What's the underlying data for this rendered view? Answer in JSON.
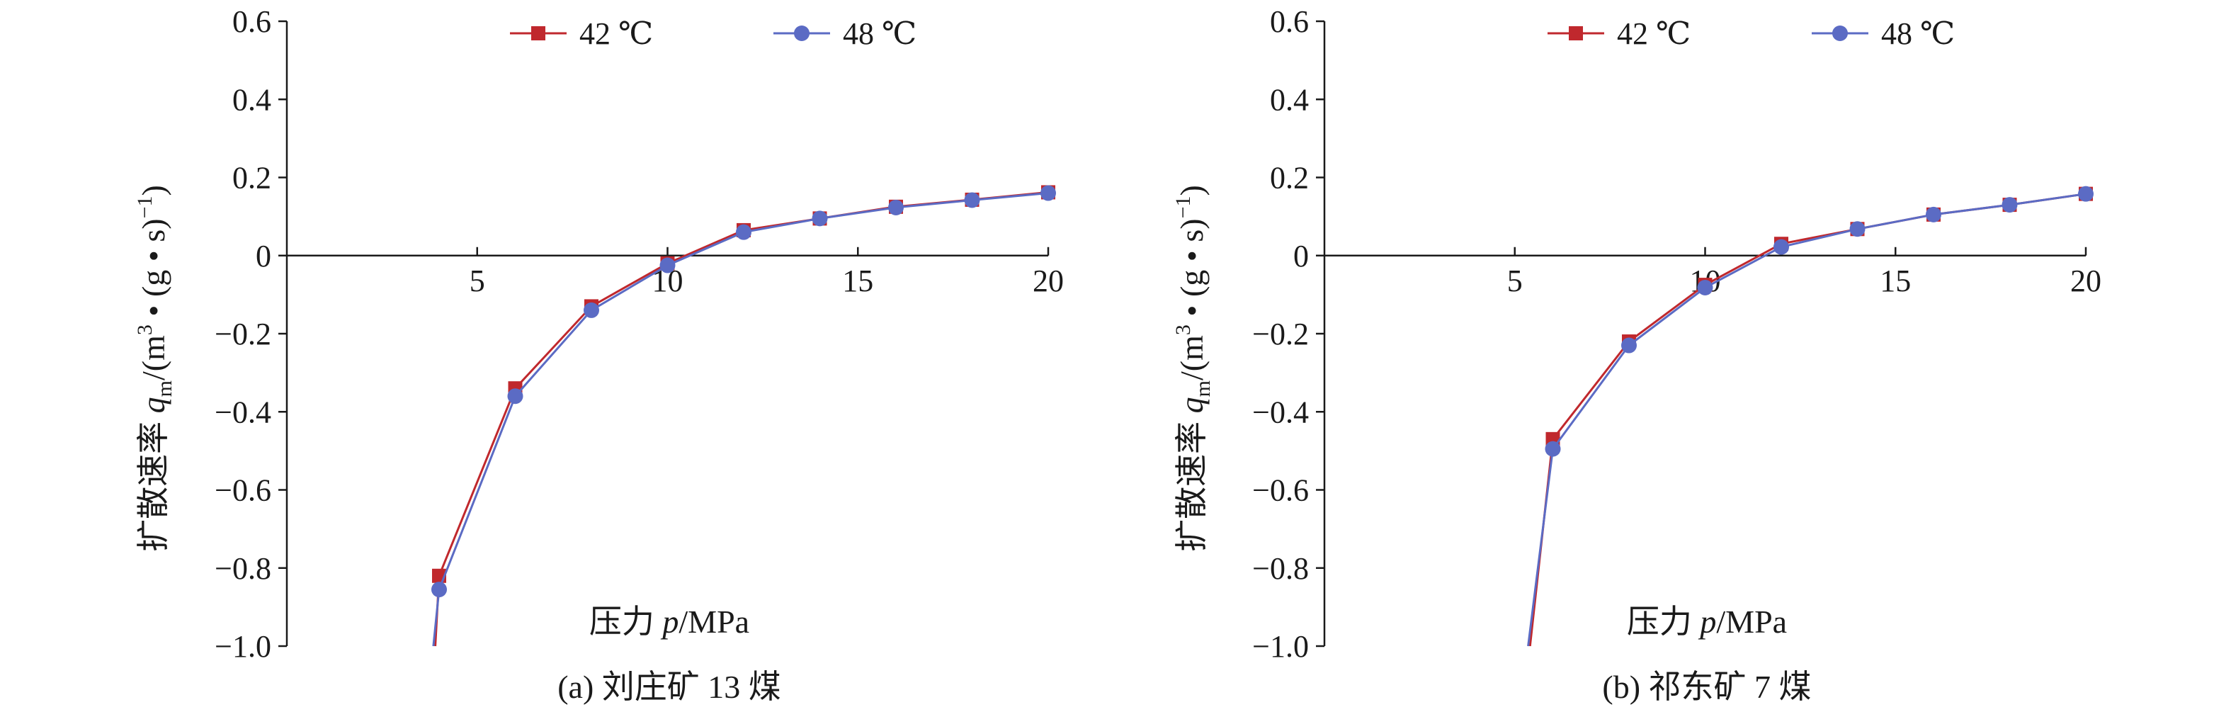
{
  "chart_data": [
    {
      "type": "line",
      "caption": "(a) 刘庄矿 13 煤",
      "xlabel": "压力 p/MPa",
      "xlabel_prefix": "压力 ",
      "xlabel_var": "p",
      "xlabel_unit": "/MPa",
      "ylabel_prefix": "扩散速率 ",
      "ylabel_var": "q",
      "ylabel_sub": "m",
      "ylabel_unit_open": "/(m",
      "ylabel_sup3": "3",
      "ylabel_mid": " • (g • s)",
      "ylabel_supneg": "−1",
      "ylabel_close": ")",
      "xlim": [
        0,
        20
      ],
      "ylim": [
        -1.0,
        0.6
      ],
      "xticks": [
        5,
        10,
        15,
        20
      ],
      "xtick_labels": [
        "5",
        "10",
        "15",
        "20"
      ],
      "yticks": [
        0.6,
        0.4,
        0.2,
        0,
        -0.2,
        -0.4,
        -0.6,
        -0.8,
        -1.0
      ],
      "ytick_labels": [
        "0.6",
        "0.4",
        "0.2",
        "0",
        "−0.2",
        "−0.4",
        "−0.6",
        "−0.8",
        "−1.0"
      ],
      "legend_position": "top",
      "series": [
        {
          "name": "42 ℃",
          "color": "#c0282d",
          "marker": "square",
          "x": [
            3.9,
            4,
            6,
            8,
            10,
            12,
            14,
            16,
            18,
            20
          ],
          "y": [
            -1.0,
            -0.82,
            -0.34,
            -0.13,
            -0.02,
            0.065,
            0.095,
            0.125,
            0.143,
            0.162
          ],
          "markers": [
            false,
            true,
            true,
            true,
            true,
            true,
            true,
            true,
            true,
            true
          ]
        },
        {
          "name": "48 ℃",
          "color": "#5b6bc4",
          "marker": "circle",
          "x": [
            3.85,
            4,
            6,
            8,
            10,
            12,
            14,
            16,
            18,
            20
          ],
          "y": [
            -1.0,
            -0.855,
            -0.36,
            -0.14,
            -0.025,
            0.06,
            0.095,
            0.123,
            0.142,
            0.16
          ],
          "markers": [
            false,
            true,
            true,
            true,
            true,
            true,
            true,
            true,
            true,
            true
          ]
        }
      ]
    },
    {
      "type": "line",
      "caption": "(b) 祁东矿 7 煤",
      "xlabel": "压力 p/MPa",
      "xlabel_prefix": "压力 ",
      "xlabel_var": "p",
      "xlabel_unit": "/MPa",
      "ylabel_prefix": "扩散速率 ",
      "ylabel_var": "q",
      "ylabel_sub": "m",
      "ylabel_unit_open": "/(m",
      "ylabel_sup3": "3",
      "ylabel_mid": " • (g • s)",
      "ylabel_supneg": "−1",
      "ylabel_close": ")",
      "xlim": [
        0,
        20
      ],
      "ylim": [
        -1.0,
        0.6
      ],
      "xticks": [
        5,
        10,
        15,
        20
      ],
      "xtick_labels": [
        "5",
        "10",
        "15",
        "20"
      ],
      "yticks": [
        0.6,
        0.4,
        0.2,
        0,
        -0.2,
        -0.4,
        -0.6,
        -0.8,
        -1.0
      ],
      "ytick_labels": [
        "0.6",
        "0.4",
        "0.2",
        "0",
        "−0.2",
        "−0.4",
        "−0.6",
        "−0.8",
        "−1.0"
      ],
      "legend_position": "top",
      "series": [
        {
          "name": "42 ℃",
          "color": "#c0282d",
          "marker": "square",
          "x": [
            5.4,
            6,
            8,
            10,
            12,
            14,
            16,
            18,
            20
          ],
          "y": [
            -1.0,
            -0.47,
            -0.22,
            -0.075,
            0.03,
            0.068,
            0.105,
            0.13,
            0.158
          ],
          "markers": [
            false,
            true,
            true,
            true,
            true,
            true,
            true,
            true,
            true
          ]
        },
        {
          "name": "48 ℃",
          "color": "#5b6bc4",
          "marker": "circle",
          "x": [
            5.35,
            6,
            8,
            10,
            12,
            14,
            16,
            18,
            20
          ],
          "y": [
            -1.0,
            -0.495,
            -0.23,
            -0.082,
            0.022,
            0.068,
            0.105,
            0.13,
            0.158
          ],
          "markers": [
            false,
            true,
            true,
            true,
            true,
            true,
            true,
            true,
            true
          ]
        }
      ]
    }
  ]
}
